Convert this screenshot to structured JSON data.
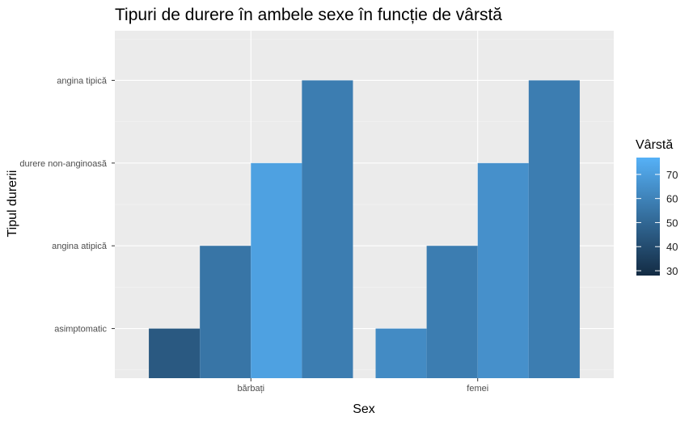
{
  "chart_data": {
    "type": "bar",
    "title": "Tipuri de durere în ambele sexe în funcție de vârstă",
    "xlabel": "Sex",
    "ylabel": "Tipul durerii",
    "categories": [
      "bărbați",
      "femei"
    ],
    "y_levels": [
      "asimptomatic",
      "angina atipică",
      "durere non-anginoasă",
      "angina tipică"
    ],
    "bars": [
      [
        {
          "level": "asimptomatic",
          "age": 45
        },
        {
          "level": "angina atipică",
          "age": 55
        },
        {
          "level": "durere non-anginoasă",
          "age": 71
        },
        {
          "level": "angina tipică",
          "age": 58
        }
      ],
      [
        {
          "level": "asimptomatic",
          "age": 63
        },
        {
          "level": "angina atipică",
          "age": 58
        },
        {
          "level": "durere non-anginoasă",
          "age": 65
        },
        {
          "level": "angina tipică",
          "age": 58
        }
      ]
    ],
    "legend": {
      "title": "Vârstă",
      "ticks": [
        30,
        40,
        50,
        60,
        70
      ],
      "range": [
        28,
        77
      ],
      "color_low": "#132B43",
      "color_high": "#56B1F7",
      "placement": "right"
    },
    "panel_background": "#EBEBEB",
    "grid": true
  }
}
